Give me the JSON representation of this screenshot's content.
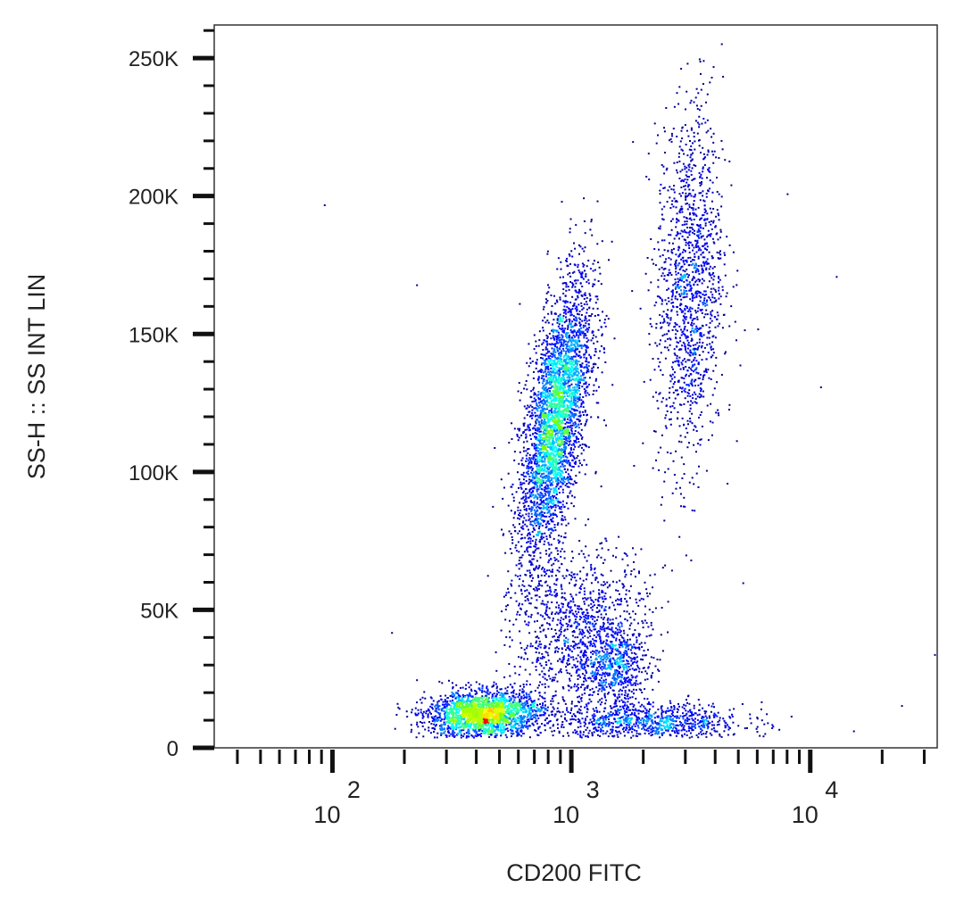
{
  "chart_data": {
    "type": "scatter",
    "subtype": "density-dot-plot",
    "xlabel": "CD200 FITC",
    "ylabel": "SS-H :: SS INT LIN",
    "xscale": "log",
    "xlim": [
      32,
      34000
    ],
    "ylim": [
      0,
      262000
    ],
    "yticks": [
      0,
      50000,
      100000,
      150000,
      200000,
      250000
    ],
    "ytick_labels": [
      "0",
      "50K",
      "100K",
      "150K",
      "200K",
      "250K"
    ],
    "xticks": [
      100,
      1000,
      10000
    ],
    "xtick_labels": [
      {
        "base": "10",
        "exp": "2"
      },
      {
        "base": "10",
        "exp": "3"
      },
      {
        "base": "10",
        "exp": "4"
      }
    ],
    "grid": false,
    "legend": "none",
    "colormap": [
      "#00008f",
      "#0000ff",
      "#00ffff",
      "#7fff00",
      "#ffff00",
      "#ff0000"
    ],
    "populations": [
      {
        "id": "pop-a",
        "x_center": 850,
        "y_center": 118000,
        "log_x_sd": 0.075,
        "y_sd": 26000,
        "rho": 0.6,
        "events": 3600
      },
      {
        "id": "pop-b",
        "x_center": 430,
        "y_center": 12500,
        "log_x_sd": 0.12,
        "y_sd": 4200,
        "rho": 0.1,
        "events": 2200
      },
      {
        "id": "pop-c",
        "x_center": 1500,
        "y_center": 30000,
        "log_x_sd": 0.07,
        "y_sd": 6500,
        "rho": 0.0,
        "events": 500
      },
      {
        "id": "pop-d",
        "x_center": 3100,
        "y_center": 168000,
        "log_x_sd": 0.07,
        "y_sd": 33000,
        "rho": 0.15,
        "events": 1400
      },
      {
        "id": "pop-e",
        "x_center": 2100,
        "y_center": 9500,
        "log_x_sd": 0.2,
        "y_sd": 3500,
        "rho": 0.0,
        "events": 900
      },
      {
        "id": "pop-f",
        "x_center": 1100,
        "y_center": 42000,
        "log_x_sd": 0.14,
        "y_sd": 15000,
        "rho": 0.1,
        "events": 1100
      }
    ],
    "outliers": [
      [
        92,
        197000
      ],
      [
        224,
        168000
      ],
      [
        7970,
        201000
      ],
      [
        12800,
        171000
      ],
      [
        24000,
        15500
      ],
      [
        33000,
        34000
      ],
      [
        176,
        42000
      ],
      [
        11000,
        131000
      ],
      [
        5200,
        60000
      ],
      [
        6000,
        152000
      ]
    ]
  }
}
